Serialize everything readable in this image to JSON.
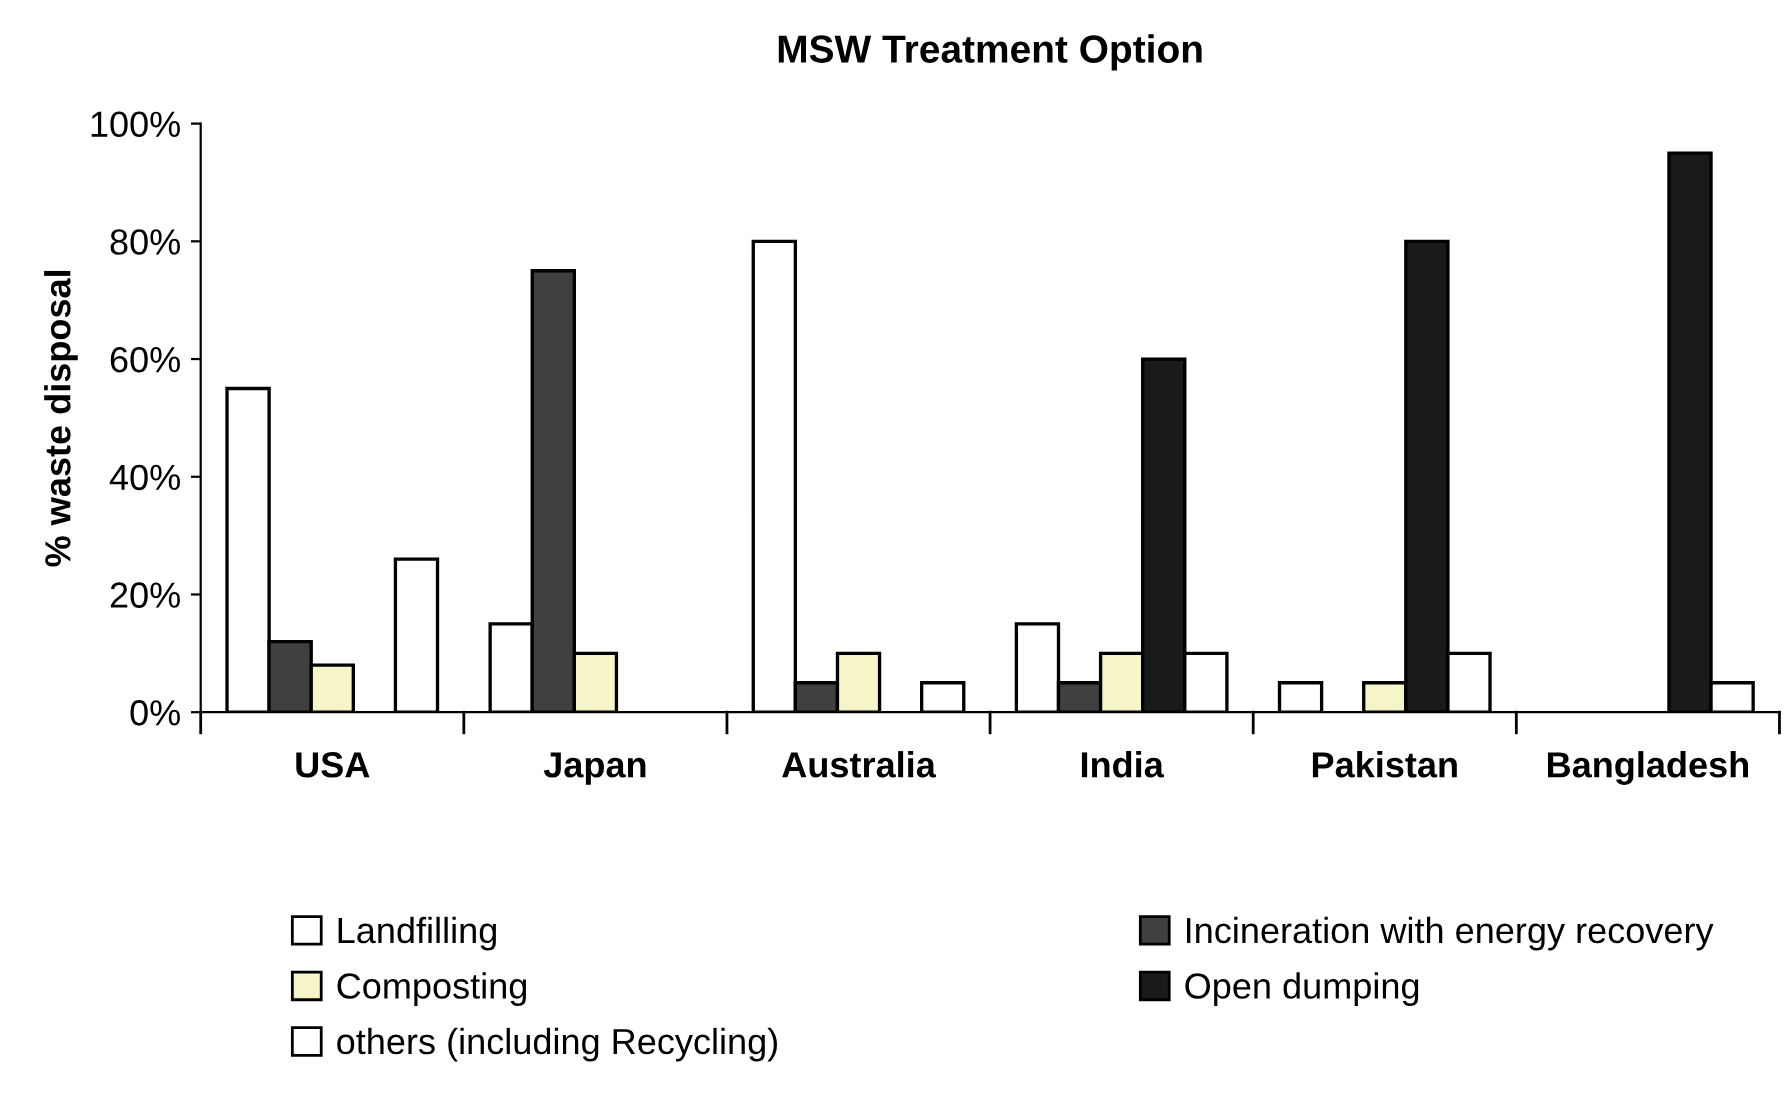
{
  "chart_data": {
    "type": "bar",
    "title": "MSW Treatment Option",
    "ylabel": "% waste disposal",
    "categories": [
      "USA",
      "Japan",
      "Australia",
      "India",
      "Pakistan",
      "Bangladesh"
    ],
    "series": [
      {
        "name": "Landfilling",
        "color": "#ffffff",
        "values": [
          55,
          15,
          80,
          15,
          5,
          null
        ]
      },
      {
        "name": "Incineration with energy recovery",
        "color": "#404040",
        "values": [
          12,
          75,
          5,
          5,
          null,
          null
        ]
      },
      {
        "name": "Composting",
        "color": "#f5f5c8",
        "values": [
          8,
          10,
          10,
          10,
          5,
          null
        ]
      },
      {
        "name": "Open dumping",
        "color": "#1a1a1a",
        "values": [
          null,
          null,
          null,
          60,
          80,
          95
        ]
      },
      {
        "name": "others (including Recycling)",
        "color": "#ffffff",
        "values": [
          26,
          null,
          5,
          10,
          10,
          5
        ]
      }
    ],
    "ylim": [
      0,
      100
    ],
    "yticks": [
      {
        "value": 0,
        "label": "0%"
      },
      {
        "value": 20,
        "label": "20%"
      },
      {
        "value": 40,
        "label": "40%"
      },
      {
        "value": 60,
        "label": "60%"
      },
      {
        "value": 80,
        "label": "80%"
      },
      {
        "value": 100,
        "label": "100%"
      }
    ],
    "grid": false,
    "legend": "bottom"
  }
}
